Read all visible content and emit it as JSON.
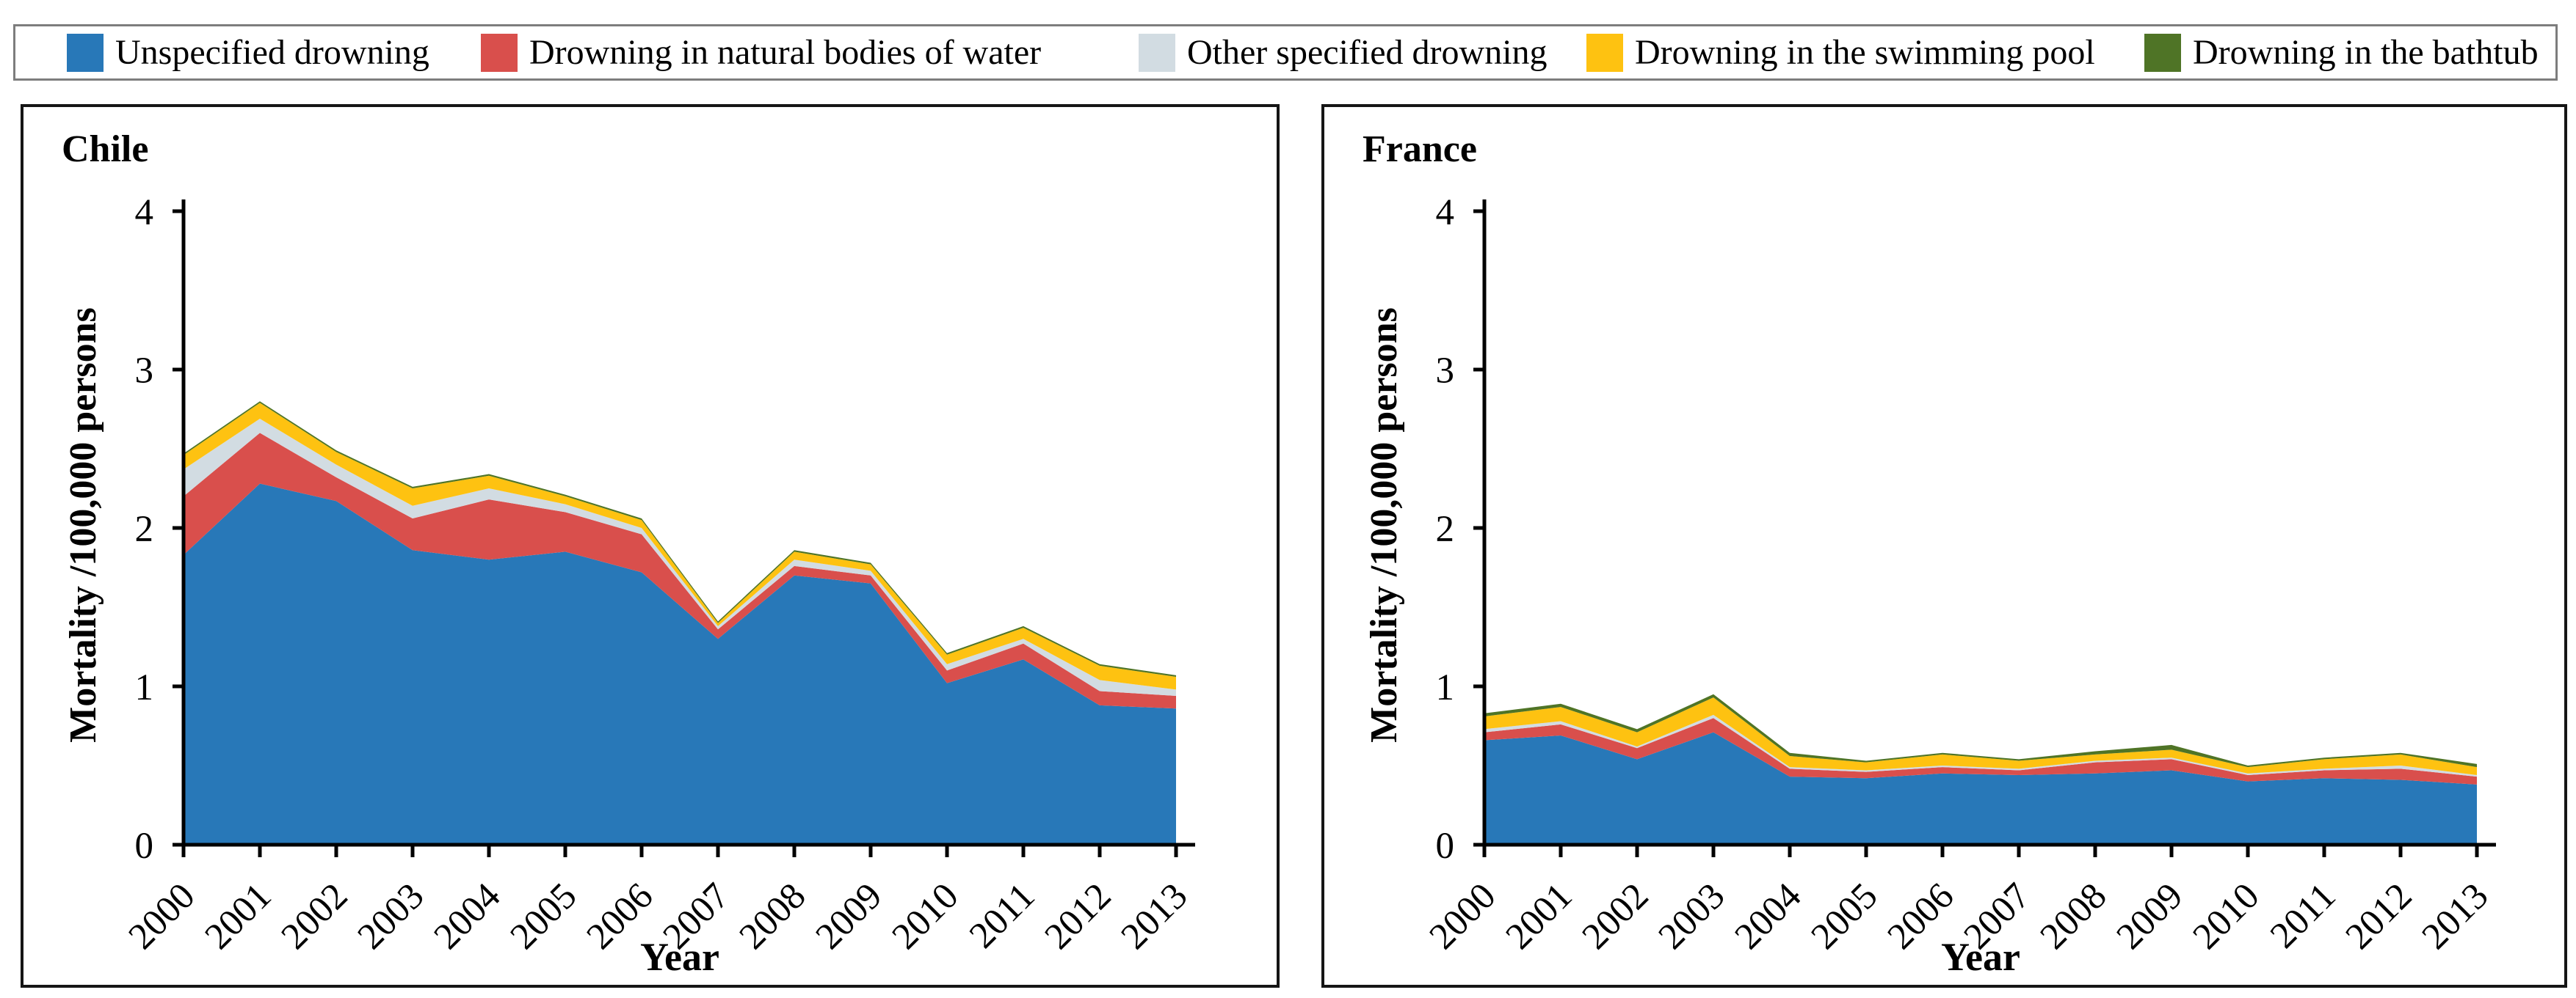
{
  "legend": {
    "items": [
      {
        "label": "Unspecified drowning",
        "color": "#2878b8"
      },
      {
        "label": "Drowning in natural bodies of water",
        "color": "#d94f4c"
      },
      {
        "label": "Other specified drowning",
        "color": "#d2dce2"
      },
      {
        "label": "Drowning in the swimming pool",
        "color": "#fec211"
      },
      {
        "label": "Drowning in the bathtub",
        "color": "#4f7426"
      }
    ]
  },
  "chart_data": [
    {
      "type": "area",
      "stacked": true,
      "title": "Chile",
      "xlabel": "Year",
      "ylabel": "Mortality /100,000 persons",
      "x": [
        2000,
        2001,
        2002,
        2003,
        2004,
        2005,
        2006,
        2007,
        2008,
        2009,
        2010,
        2011,
        2012,
        2013
      ],
      "ylim": [
        0,
        4
      ],
      "yticks": [
        0,
        1,
        2,
        3,
        4
      ],
      "legend_position": "top",
      "grid": false,
      "series": [
        {
          "name": "Unspecified drowning",
          "color": "#2878b8",
          "values": [
            1.83,
            2.28,
            2.17,
            1.86,
            1.8,
            1.85,
            1.72,
            1.3,
            1.7,
            1.65,
            1.02,
            1.17,
            0.88,
            0.86
          ]
        },
        {
          "name": "Drowning in natural bodies of water",
          "color": "#d94f4c",
          "values": [
            0.37,
            0.32,
            0.15,
            0.2,
            0.38,
            0.25,
            0.24,
            0.06,
            0.06,
            0.05,
            0.08,
            0.1,
            0.09,
            0.08
          ]
        },
        {
          "name": "Other specified drowning",
          "color": "#d2dce2",
          "values": [
            0.17,
            0.09,
            0.08,
            0.08,
            0.07,
            0.05,
            0.04,
            0.02,
            0.04,
            0.03,
            0.04,
            0.03,
            0.07,
            0.04
          ]
        },
        {
          "name": "Drowning in the swimming pool",
          "color": "#fec211",
          "values": [
            0.09,
            0.1,
            0.08,
            0.11,
            0.08,
            0.05,
            0.05,
            0.02,
            0.05,
            0.04,
            0.06,
            0.07,
            0.09,
            0.08
          ]
        },
        {
          "name": "Drowning in the bathtub",
          "color": "#4f7426",
          "values": [
            0.01,
            0.01,
            0.01,
            0.01,
            0.01,
            0.01,
            0.01,
            0.01,
            0.01,
            0.01,
            0.01,
            0.01,
            0.01,
            0.01
          ]
        }
      ]
    },
    {
      "type": "area",
      "stacked": true,
      "title": "France",
      "xlabel": "Year",
      "ylabel": "Mortality /100,000 persons",
      "x": [
        2000,
        2001,
        2002,
        2003,
        2004,
        2005,
        2006,
        2007,
        2008,
        2009,
        2010,
        2011,
        2012,
        2013
      ],
      "ylim": [
        0,
        4
      ],
      "yticks": [
        0,
        1,
        2,
        3,
        4
      ],
      "legend_position": "top",
      "grid": false,
      "series": [
        {
          "name": "Unspecified drowning",
          "color": "#2878b8",
          "values": [
            0.66,
            0.69,
            0.54,
            0.71,
            0.43,
            0.42,
            0.45,
            0.44,
            0.45,
            0.47,
            0.4,
            0.42,
            0.41,
            0.38
          ]
        },
        {
          "name": "Drowning in natural bodies of water",
          "color": "#d94f4c",
          "values": [
            0.05,
            0.07,
            0.07,
            0.09,
            0.05,
            0.04,
            0.04,
            0.03,
            0.07,
            0.07,
            0.04,
            0.05,
            0.07,
            0.05
          ]
        },
        {
          "name": "Other specified drowning",
          "color": "#d2dce2",
          "values": [
            0.02,
            0.02,
            0.01,
            0.02,
            0.01,
            0.01,
            0.01,
            0.01,
            0.01,
            0.01,
            0.01,
            0.01,
            0.02,
            0.01
          ]
        },
        {
          "name": "Drowning in the swimming pool",
          "color": "#fec211",
          "values": [
            0.08,
            0.09,
            0.09,
            0.11,
            0.07,
            0.05,
            0.07,
            0.05,
            0.04,
            0.05,
            0.04,
            0.06,
            0.07,
            0.05
          ]
        },
        {
          "name": "Drowning in the bathtub",
          "color": "#4f7426",
          "values": [
            0.02,
            0.02,
            0.02,
            0.02,
            0.02,
            0.01,
            0.01,
            0.01,
            0.02,
            0.03,
            0.01,
            0.01,
            0.01,
            0.02
          ]
        }
      ]
    }
  ]
}
